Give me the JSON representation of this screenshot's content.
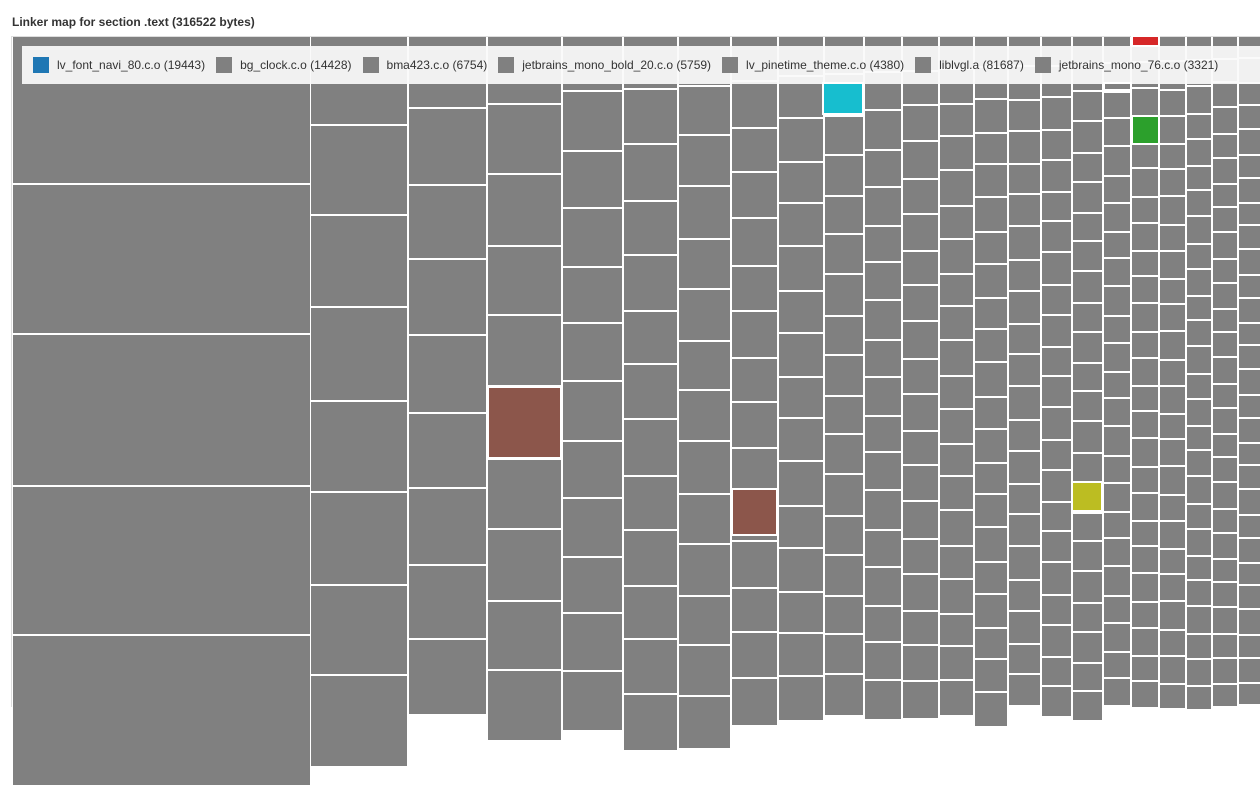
{
  "title": "Linker map for section .text (316522 bytes)",
  "default_color": "#808080",
  "legend": [
    {
      "label": "lv_font_navi_80.c.o (19443)",
      "color": "#1f77b4"
    },
    {
      "label": "bg_clock.c.o (14428)",
      "color": "#808080"
    },
    {
      "label": "bma423.c.o (6754)",
      "color": "#808080"
    },
    {
      "label": "jetbrains_mono_bold_20.c.o (5759)",
      "color": "#808080"
    },
    {
      "label": "lv_pinetime_theme.c.o (4380)",
      "color": "#808080"
    },
    {
      "label": "liblvgl.a (81687)",
      "color": "#808080"
    },
    {
      "label": "jetbrains_mono_76.c.o (3321)",
      "color": "#808080"
    }
  ],
  "highlight_colors": [
    "#8c564b",
    "#17becf",
    "#bcbd22",
    "#2ca02c",
    "#d62728",
    "#9467bd"
  ]
}
